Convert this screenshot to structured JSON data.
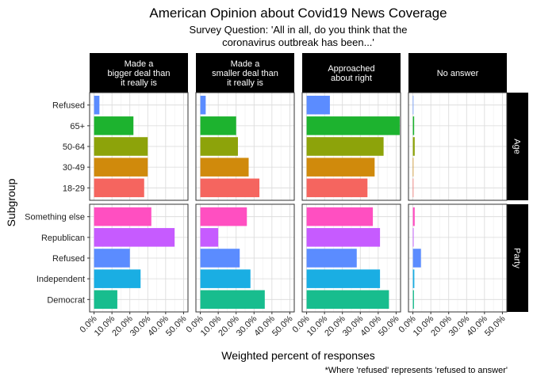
{
  "chart_data": {
    "type": "bar",
    "orientation": "horizontal",
    "faceted": true,
    "title": "American Opinion about Covid19 News Coverage",
    "subtitle_lines": [
      "Survey Question: 'All in all, do you think that the",
      "coronavirus outbreak has been...'"
    ],
    "xlabel": "Weighted percent of responses",
    "ylabel": "Subgroup",
    "caption": "*Where 'refused' represents 'refused to answer'",
    "xlim": [
      0,
      0.5
    ],
    "x_ticks": [
      "0.0%",
      "10.0%",
      "20.0%",
      "30.0%",
      "40.0%",
      "50.0%"
    ],
    "columns": [
      {
        "label_lines": [
          "Made a",
          "bigger deal than",
          "it really is"
        ]
      },
      {
        "label_lines": [
          "Made a",
          "smaller deal than",
          "it really is"
        ]
      },
      {
        "label_lines": [
          "Approached",
          "about right"
        ]
      },
      {
        "label_lines": [
          "No answer"
        ]
      }
    ],
    "rows": [
      {
        "label": "Age",
        "categories": [
          "Refused",
          "65+",
          "50-64",
          "30-49",
          "18-29"
        ],
        "colors": [
          "#5b8cff",
          "#1db32f",
          "#8da30a",
          "#d08a0c",
          "#f5655f"
        ],
        "values": [
          [
            0.03,
            0.22,
            0.3,
            0.3,
            0.28
          ],
          [
            0.03,
            0.2,
            0.21,
            0.27,
            0.33
          ],
          [
            0.13,
            0.52,
            0.43,
            0.38,
            0.34
          ],
          [
            0.003,
            0.007,
            0.01,
            0.003,
            0.003
          ]
        ]
      },
      {
        "label": "Party",
        "categories": [
          "Something else",
          "Republican",
          "Refused",
          "Independent",
          "Democrat"
        ],
        "colors": [
          "#ff4fc1",
          "#c65bff",
          "#5b8cff",
          "#1aaee3",
          "#18bd8e"
        ],
        "values": [
          [
            0.32,
            0.45,
            0.2,
            0.26,
            0.13
          ],
          [
            0.26,
            0.1,
            0.22,
            0.28,
            0.36
          ],
          [
            0.37,
            0.41,
            0.28,
            0.41,
            0.46
          ],
          [
            0.01,
            0.004,
            0.045,
            0.008,
            0.006
          ]
        ]
      }
    ]
  }
}
